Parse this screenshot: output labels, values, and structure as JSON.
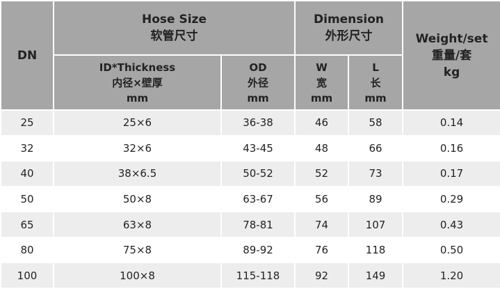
{
  "header": {
    "dn": "DN",
    "hose_size": [
      "Hose Size",
      "软管尺寸"
    ],
    "dimension": [
      "Dimension",
      "外形尺寸"
    ],
    "weight": [
      "Weight/set",
      "重量/套",
      "kg"
    ],
    "id_thickness": [
      "ID*Thickness",
      "内径×壁厚",
      "mm"
    ],
    "od": [
      "OD",
      "外径",
      "mm"
    ],
    "w": [
      "W",
      "宽",
      "mm"
    ],
    "l": [
      "L",
      "长",
      "mm"
    ]
  },
  "table": {
    "rows": [
      [
        "25",
        "25×6",
        "36-38",
        "46",
        "58",
        "0.14"
      ],
      [
        "32",
        "32×6",
        "43-45",
        "48",
        "66",
        "0.16"
      ],
      [
        "40",
        "38×6.5",
        "50-52",
        "52",
        "73",
        "0.17"
      ],
      [
        "50",
        "50×8",
        "63-67",
        "56",
        "89",
        "0.29"
      ],
      [
        "65",
        "63×8",
        "78-81",
        "74",
        "107",
        "0.43"
      ],
      [
        "80",
        "75×8",
        "89-92",
        "76",
        "118",
        "0.50"
      ],
      [
        "100",
        "100×8",
        "115-118",
        "92",
        "149",
        "1.20"
      ]
    ]
  }
}
